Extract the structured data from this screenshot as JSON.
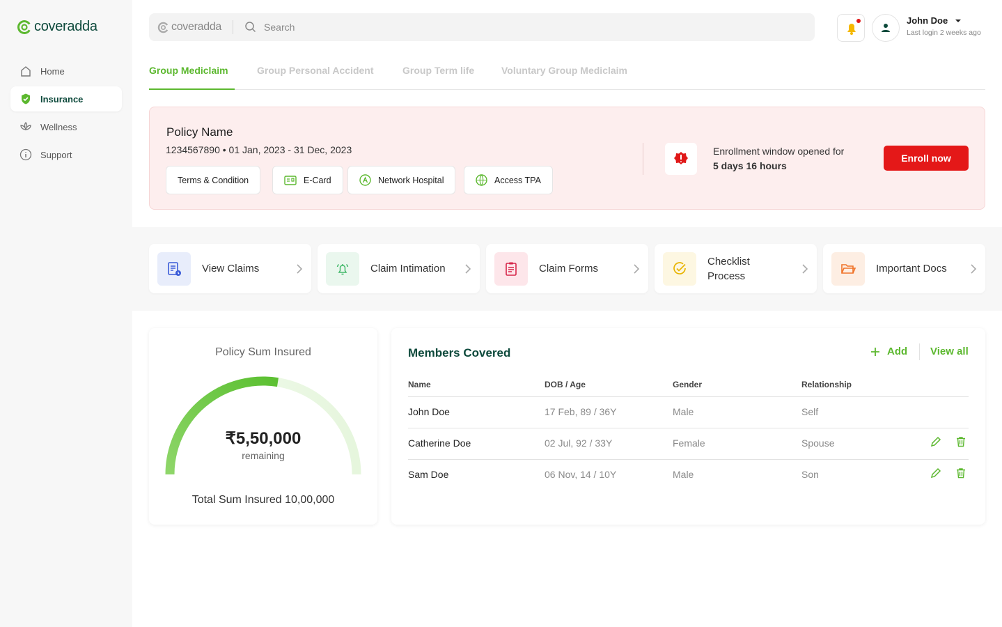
{
  "sidebar": {
    "logo": "coveradda",
    "nav": [
      "Home",
      "Insurance",
      "Wellness",
      "Support"
    ]
  },
  "header": {
    "logo": "coveradda",
    "search_placeholder": "Search",
    "user_name": "John Doe",
    "last_login": "Last login 2 weeks ago"
  },
  "tabs": [
    "Group Mediclaim",
    "Group Personal Accident",
    "Group Term life",
    "Voluntary Group Mediclaim"
  ],
  "policy": {
    "name": "Policy Name",
    "details": "1234567890 • 01 Jan, 2023 - 31 Dec, 2023",
    "buttons": [
      "Terms & Condition",
      "E-Card",
      "Network Hospital",
      "Access TPA"
    ],
    "enrollment_text": "Enrollment window opened for",
    "enrollment_time": "5 days 16 hours",
    "enroll_button": "Enroll now"
  },
  "quick_links": [
    "View Claims",
    "Claim Intimation",
    "Claim Forms",
    "Checklist Process",
    "Important Docs"
  ],
  "sum_insured": {
    "title": "Policy Sum Insured",
    "amount": {
      "value": 550000,
      "label": "₹5,50,000"
    },
    "caption": "remaining",
    "total_prefix": "Total Sum Insured",
    "total": {
      "value": 1000000,
      "label": "10,00,000"
    }
  },
  "members": {
    "title": "Members Covered",
    "add": "Add",
    "view_all": "View all",
    "columns": [
      "Name",
      "DOB / Age",
      "Gender",
      "Relationship"
    ],
    "rows": [
      [
        "John Doe",
        "17 Feb, 89 / 36Y",
        "Male",
        "Self"
      ],
      [
        "Catherine Doe",
        "02 Jul, 92 / 33Y",
        "Female",
        "Spouse"
      ],
      [
        "Sam Doe",
        "06 Nov, 14 / 10Y",
        "Male",
        "Son"
      ]
    ]
  }
}
